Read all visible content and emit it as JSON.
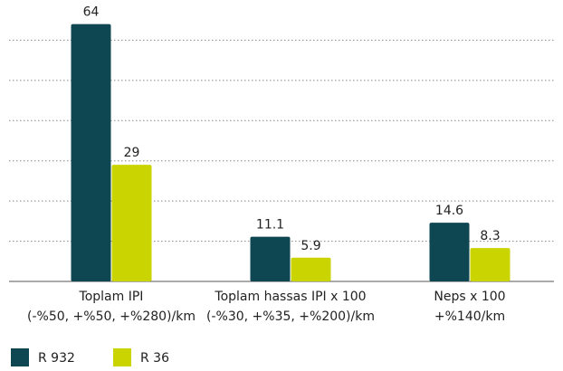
{
  "chart_data": {
    "type": "bar",
    "categories": [
      [
        "Toplam IPI",
        "(-%50, +%50, +%280)/km"
      ],
      [
        "Toplam hassas IPI x 100",
        "(-%30, +%35, +%200)/km"
      ],
      [
        "Neps x 100",
        "+%140/km"
      ]
    ],
    "series": [
      {
        "name": "R 932",
        "color": "#0e4651",
        "values": [
          64,
          11.1,
          14.6
        ]
      },
      {
        "name": "R 36",
        "color": "#c9d400",
        "values": [
          29,
          5.9,
          8.3
        ]
      }
    ],
    "ylim": [
      0,
      70
    ],
    "yticks": [
      0,
      10,
      20,
      30,
      40,
      50,
      60
    ],
    "grid": true
  }
}
